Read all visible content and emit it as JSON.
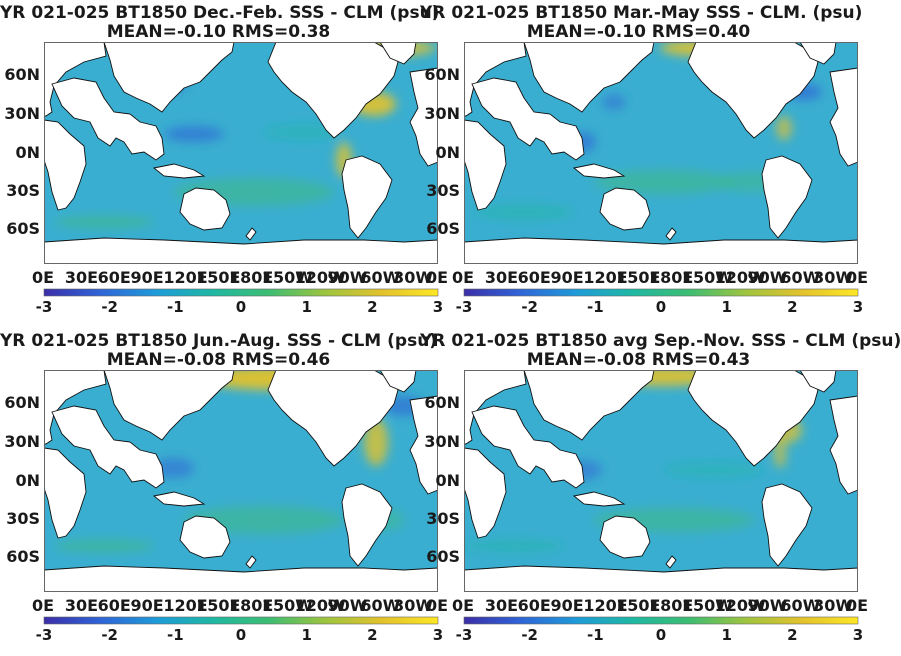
{
  "figure": {
    "colormap": [
      "#3b2ea8",
      "#2f64d6",
      "#1e9bd9",
      "#1fb8a3",
      "#3dbd72",
      "#9ec43f",
      "#e2c22d",
      "#fde725"
    ],
    "land_color": "#ffffff",
    "ocean_base": "#3aaed0"
  },
  "chart_data": [
    {
      "type": "heatmap",
      "title": "YR 021-025 BT1850  Dec.-Feb. SSS - CLM (psu)",
      "subtitle": "MEAN=-0.10   RMS=0.38",
      "mean": -0.1,
      "rms": 0.38,
      "y_ticks": [
        "60N",
        "30N",
        "0N",
        "30S",
        "60S"
      ],
      "x_ticks": [
        "0E",
        "30E",
        "60E",
        "90E",
        "120E",
        "150E",
        "180E",
        "150W",
        "120W",
        "90W",
        "60W",
        "30W",
        "0E"
      ],
      "colorbar": {
        "min": -3,
        "max": 3,
        "ticks": [
          "-3",
          "-2",
          "-1",
          "0",
          "1",
          "2",
          "3"
        ]
      }
    },
    {
      "type": "heatmap",
      "title": "YR 021-025 BT1850 Mar.-May SSS - CLM. (psu)",
      "subtitle": "MEAN=-0.10   RMS=0.40",
      "mean": -0.1,
      "rms": 0.4,
      "y_ticks": [
        "60N",
        "30N",
        "0N",
        "30S",
        "60S"
      ],
      "x_ticks": [
        "0E",
        "30E",
        "60E",
        "90E",
        "120E",
        "150E",
        "180E",
        "150W",
        "120W",
        "90W",
        "60W",
        "30W",
        "0E"
      ],
      "colorbar": {
        "min": -3,
        "max": 3,
        "ticks": [
          "-3",
          "-2",
          "-1",
          "0",
          "1",
          "2",
          "3"
        ]
      }
    },
    {
      "type": "heatmap",
      "title": "YR 021-025 BT1850 Jun.-Aug. SSS - CLM (psu)",
      "subtitle": "MEAN=-0.08   RMS=0.46",
      "mean": -0.08,
      "rms": 0.46,
      "y_ticks": [
        "60N",
        "30N",
        "0N",
        "30S",
        "60S"
      ],
      "x_ticks": [
        "0E",
        "30E",
        "60E",
        "90E",
        "120E",
        "150E",
        "180E",
        "150W",
        "120W",
        "90W",
        "60W",
        "30W",
        "0E"
      ],
      "colorbar": {
        "min": -3,
        "max": 3,
        "ticks": [
          "-3",
          "-2",
          "-1",
          "0",
          "1",
          "2",
          "3"
        ]
      }
    },
    {
      "type": "heatmap",
      "title": "YR 021-025 BT1850 avg Sep.-Nov. SSS - CLM (psu)",
      "subtitle": "MEAN=-0.08   RMS=0.43",
      "mean": -0.08,
      "rms": 0.43,
      "y_ticks": [
        "60N",
        "30N",
        "0N",
        "30S",
        "60S"
      ],
      "x_ticks": [
        "0E",
        "30E",
        "60E",
        "90E",
        "120E",
        "150E",
        "180E",
        "150W",
        "120W",
        "90W",
        "60W",
        "30W",
        "0E"
      ],
      "colorbar": {
        "min": -3,
        "max": 3,
        "ticks": [
          "-3",
          "-2",
          "-1",
          "0",
          "1",
          "2",
          "3"
        ]
      }
    }
  ]
}
